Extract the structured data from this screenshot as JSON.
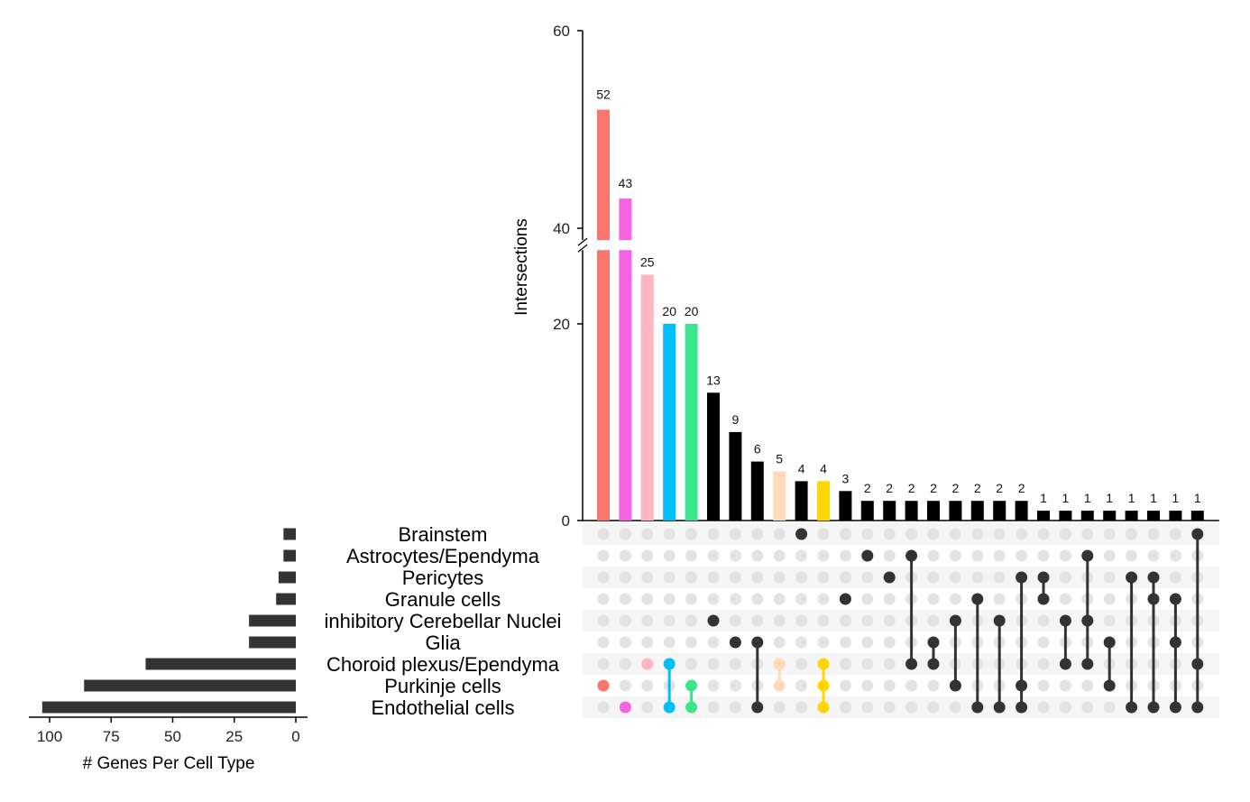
{
  "chart_data": {
    "type": "upset",
    "title": "",
    "ylabel": "Intersections",
    "xlabel_sets": "# Genes Per Cell Type",
    "y_axis": {
      "lower_range": [
        0,
        27.5
      ],
      "upper_range": [
        38.8,
        60
      ],
      "lower_ticks": [
        0,
        20
      ],
      "upper_ticks": [
        40,
        60
      ],
      "broken": true
    },
    "set_axis": {
      "range": [
        0,
        105
      ],
      "ticks": [
        100,
        75,
        50,
        25,
        0
      ],
      "reversed": true
    },
    "sets": [
      {
        "name": "Brainstem",
        "size": 5
      },
      {
        "name": "Astrocytes/Ependyma",
        "size": 5
      },
      {
        "name": "Pericytes",
        "size": 7
      },
      {
        "name": "Granule cells",
        "size": 8
      },
      {
        "name": "inhibitory Cerebellar Nuclei",
        "size": 19
      },
      {
        "name": "Glia",
        "size": 19
      },
      {
        "name": "Choroid plexus/Ependyma",
        "size": 61
      },
      {
        "name": "Purkinje cells",
        "size": 86
      },
      {
        "name": "Endothelial cells",
        "size": 103
      }
    ],
    "intersections": [
      {
        "value": 52,
        "sets": [
          "Purkinje cells"
        ],
        "color": "#F8766D"
      },
      {
        "value": 43,
        "sets": [
          "Endothelial cells"
        ],
        "color": "#F564E3"
      },
      {
        "value": 25,
        "sets": [
          "Choroid plexus/Ependyma"
        ],
        "color": "#FFB6C1"
      },
      {
        "value": 20,
        "sets": [
          "Choroid plexus/Ependyma",
          "Endothelial cells"
        ],
        "color": "#00BFFF"
      },
      {
        "value": 20,
        "sets": [
          "Purkinje cells",
          "Endothelial cells"
        ],
        "color": "#3DE58A"
      },
      {
        "value": 13,
        "sets": [
          "inhibitory Cerebellar Nuclei"
        ],
        "color": "#000000"
      },
      {
        "value": 9,
        "sets": [
          "Glia"
        ],
        "color": "#000000"
      },
      {
        "value": 6,
        "sets": [
          "Glia",
          "Endothelial cells"
        ],
        "color": "#000000"
      },
      {
        "value": 5,
        "sets": [
          "Choroid plexus/Ependyma",
          "Purkinje cells"
        ],
        "color": "#FFDAB9"
      },
      {
        "value": 4,
        "sets": [
          "Brainstem"
        ],
        "color": "#000000"
      },
      {
        "value": 4,
        "sets": [
          "Choroid plexus/Ependyma",
          "Purkinje cells",
          "Endothelial cells"
        ],
        "color": "#FFD700"
      },
      {
        "value": 3,
        "sets": [
          "Granule cells"
        ],
        "color": "#000000"
      },
      {
        "value": 2,
        "sets": [
          "Astrocytes/Ependyma"
        ],
        "color": "#000000"
      },
      {
        "value": 2,
        "sets": [
          "Pericytes"
        ],
        "color": "#000000"
      },
      {
        "value": 2,
        "sets": [
          "Astrocytes/Ependyma",
          "Choroid plexus/Ependyma"
        ],
        "color": "#000000"
      },
      {
        "value": 2,
        "sets": [
          "Glia",
          "Choroid plexus/Ependyma"
        ],
        "color": "#000000"
      },
      {
        "value": 2,
        "sets": [
          "inhibitory Cerebellar Nuclei",
          "Purkinje cells"
        ],
        "color": "#000000"
      },
      {
        "value": 2,
        "sets": [
          "Granule cells",
          "Endothelial cells"
        ],
        "color": "#000000"
      },
      {
        "value": 2,
        "sets": [
          "inhibitory Cerebellar Nuclei",
          "Endothelial cells"
        ],
        "color": "#000000"
      },
      {
        "value": 2,
        "sets": [
          "Pericytes",
          "Purkinje cells",
          "Endothelial cells"
        ],
        "color": "#000000"
      },
      {
        "value": 1,
        "sets": [
          "Pericytes",
          "Granule cells"
        ],
        "color": "#000000"
      },
      {
        "value": 1,
        "sets": [
          "inhibitory Cerebellar Nuclei",
          "Choroid plexus/Ependyma"
        ],
        "color": "#000000"
      },
      {
        "value": 1,
        "sets": [
          "Astrocytes/Ependyma",
          "inhibitory Cerebellar Nuclei",
          "Choroid plexus/Ependyma"
        ],
        "color": "#000000"
      },
      {
        "value": 1,
        "sets": [
          "Glia",
          "Purkinje cells"
        ],
        "color": "#000000"
      },
      {
        "value": 1,
        "sets": [
          "Pericytes",
          "Endothelial cells"
        ],
        "color": "#000000"
      },
      {
        "value": 1,
        "sets": [
          "Pericytes",
          "Granule cells",
          "Endothelial cells"
        ],
        "color": "#000000"
      },
      {
        "value": 1,
        "sets": [
          "Granule cells",
          "Glia",
          "Endothelial cells"
        ],
        "color": "#000000"
      },
      {
        "value": 1,
        "sets": [
          "Brainstem",
          "Choroid plexus/Ependyma",
          "Endothelial cells"
        ],
        "color": "#000000"
      }
    ],
    "colors": {
      "inactive_dot": "#E3E3E3",
      "active_dot_default": "#333333",
      "stripe": "#F5F5F5",
      "set_bar": "#333333"
    }
  }
}
